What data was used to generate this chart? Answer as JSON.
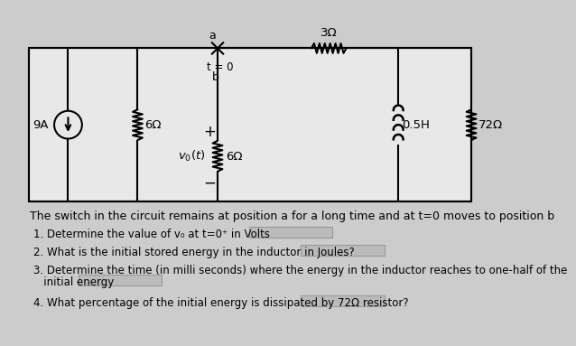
{
  "bg_color": "#cccccc",
  "circuit_bg": "#e8e8e8",
  "text_color": "#000000",
  "title_label": "The switch in the circuit remains at position a for a long time and at t=0 moves to position b",
  "q1": "1. Determine the value of v₀ at t=0⁺ in Volts",
  "q2": "2. What is the initial stored energy in the inductor in Joules?",
  "q3": "3. Determine the time (in milli seconds) where the energy in the inductor reaches to one-half of the",
  "q3b": "   initial energy",
  "q4": "4. What percentage of the initial energy is dissipated by 72Ω resistor?",
  "answer_box_color": "#bbbbbb",
  "font_size_q": 8.5,
  "font_size_circuit": 9.5
}
